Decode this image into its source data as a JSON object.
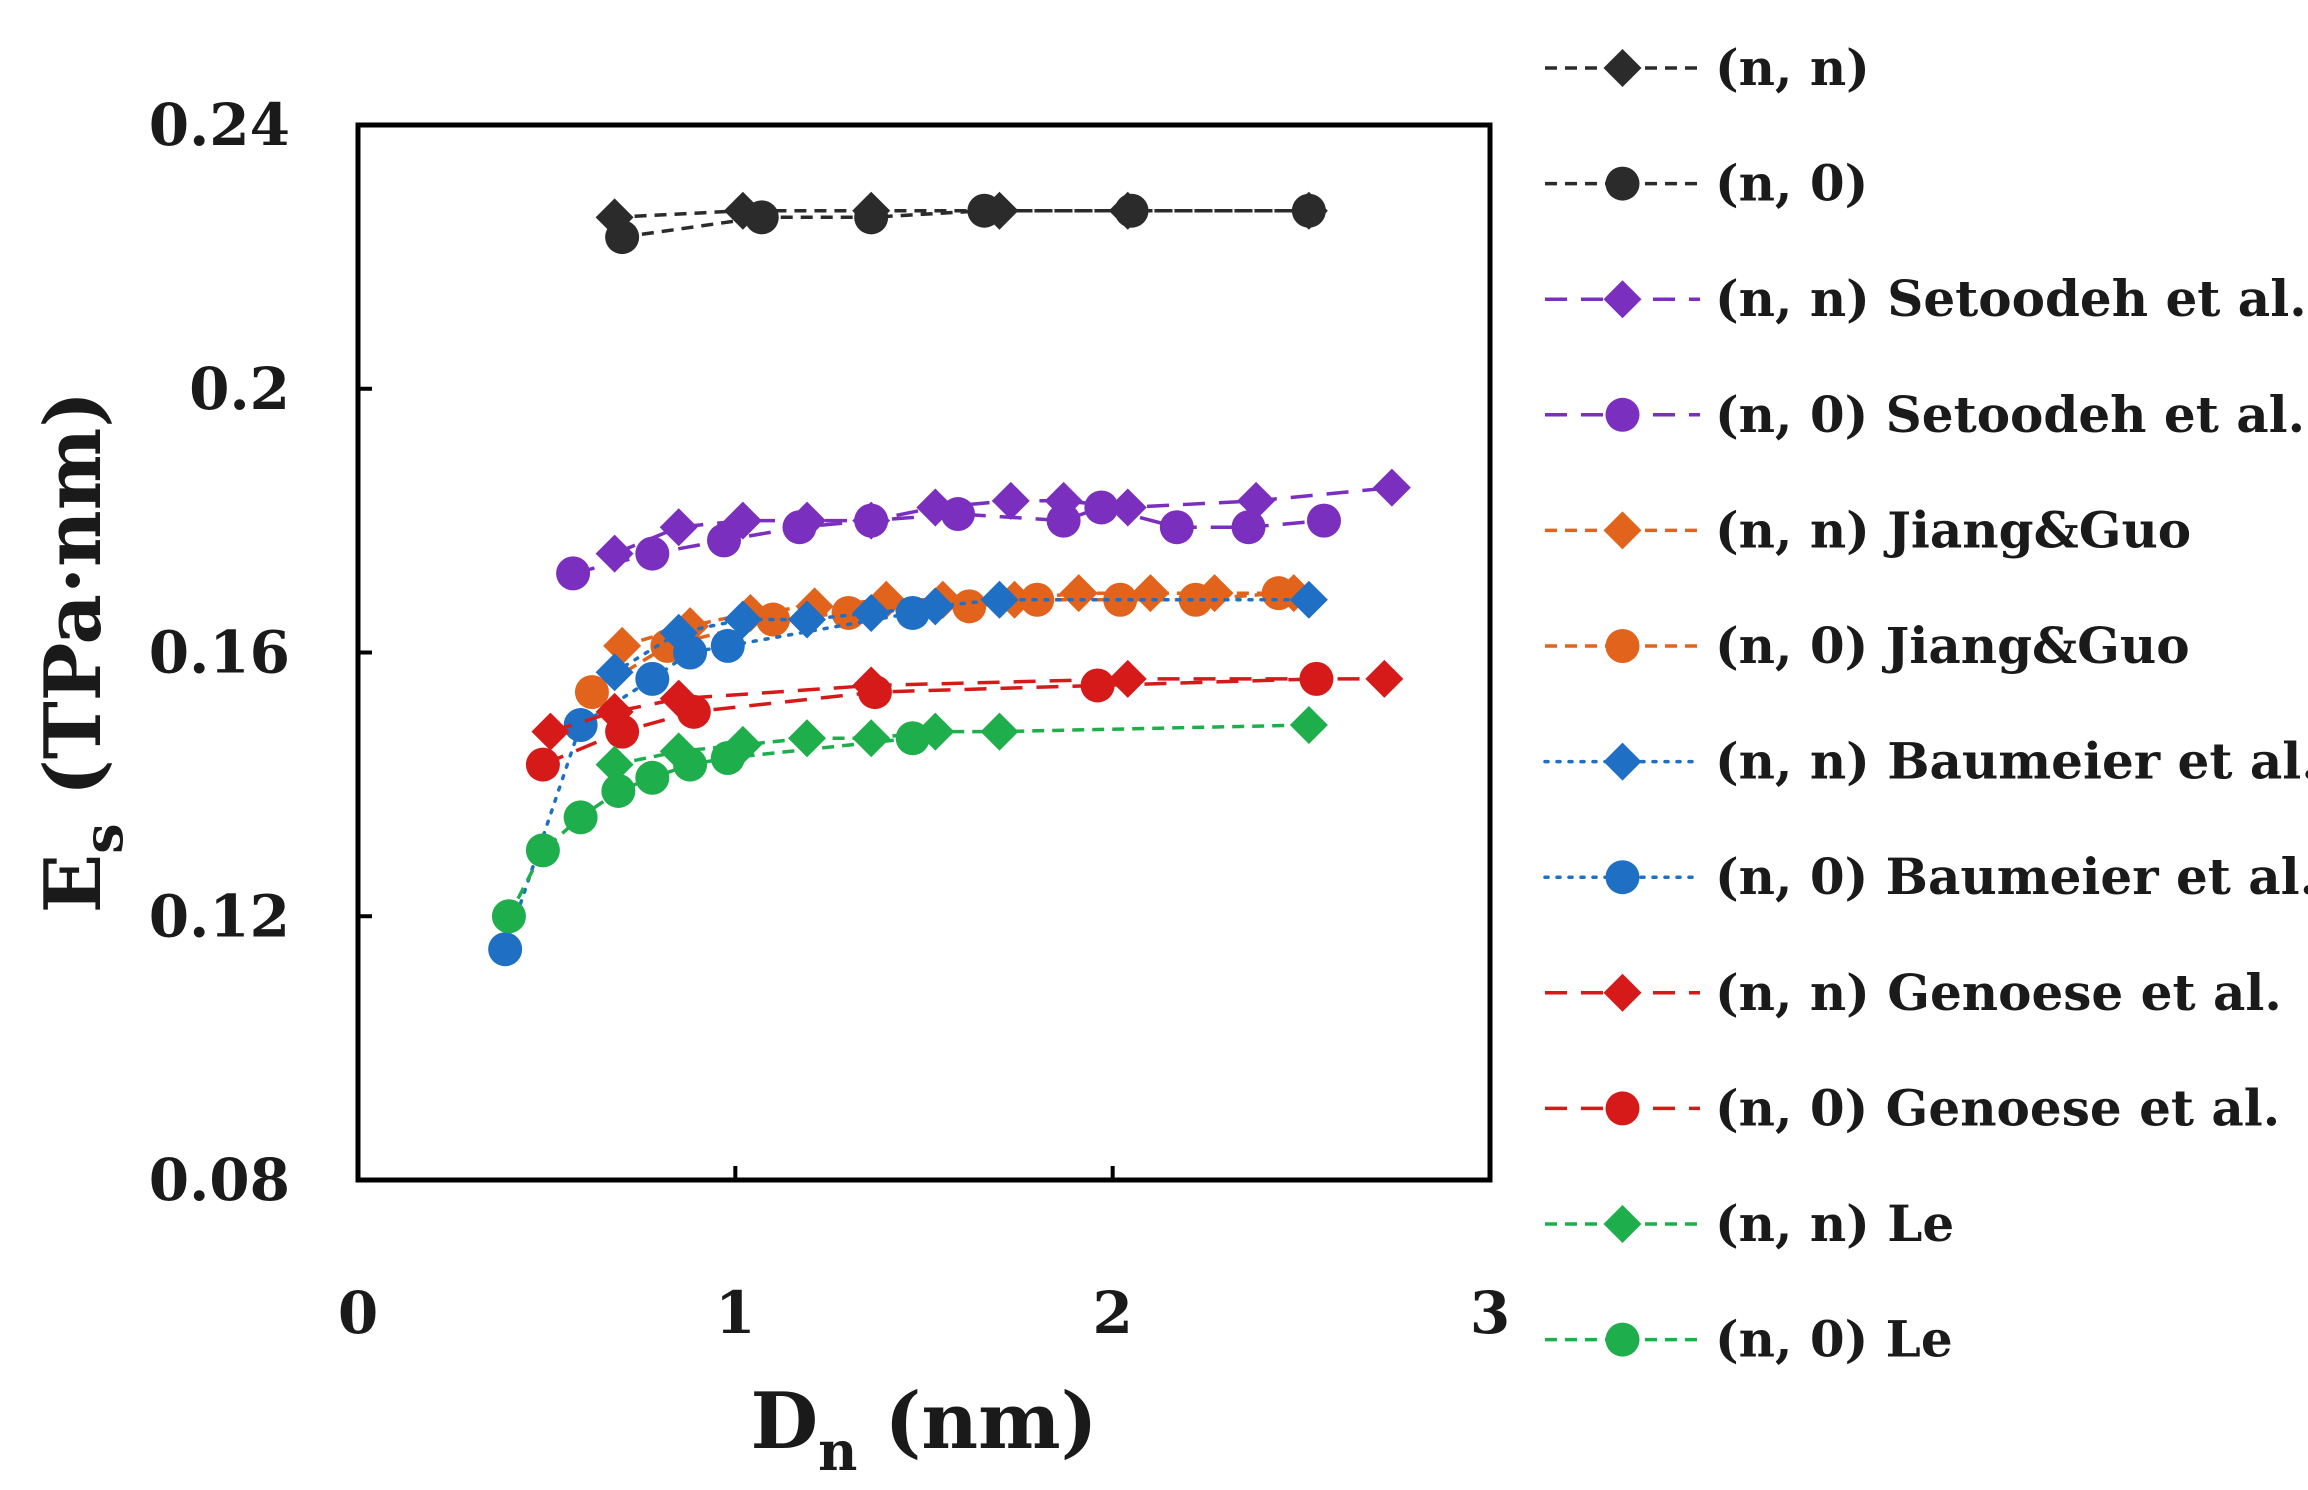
{
  "chart_data": {
    "type": "scatter",
    "xlabel": "D",
    "xlabel_sub": "n",
    "xlabel_unit": " (nm)",
    "ylabel": "E",
    "ylabel_sub": "s",
    "ylabel_unit": " (TPa·nm)",
    "xlim": [
      0,
      3
    ],
    "ylim": [
      0.08,
      0.24
    ],
    "xticks": [
      0,
      1,
      2,
      3
    ],
    "xtick_labels": [
      "0",
      "1",
      "2",
      "3"
    ],
    "yticks": [
      0.08,
      0.12,
      0.16,
      0.2,
      0.24
    ],
    "ytick_labels": [
      "0.08",
      "0.12",
      "0.16",
      "0.2",
      "0.24"
    ],
    "grid": false,
    "legend_position": "right, outside plot",
    "series": [
      {
        "name": "(n, n)",
        "color": "#2b2b2b",
        "marker": "diamond",
        "line": "dashed",
        "x": [
          0.68,
          1.02,
          1.36,
          1.7,
          2.04,
          2.52
        ],
        "y": [
          0.226,
          0.227,
          0.227,
          0.227,
          0.227,
          0.227
        ]
      },
      {
        "name": "(n, 0)",
        "color": "#2b2b2b",
        "marker": "circle",
        "line": "dashed",
        "x": [
          0.7,
          1.07,
          1.36,
          1.66,
          2.05,
          2.52
        ],
        "y": [
          0.223,
          0.226,
          0.226,
          0.227,
          0.227,
          0.227
        ]
      },
      {
        "name": "(n, n) Setoodeh et al.",
        "color": "#7b2fbe",
        "marker": "diamond",
        "line": "longdash",
        "x": [
          0.68,
          0.85,
          1.02,
          1.19,
          1.36,
          1.53,
          1.73,
          1.87,
          2.04,
          2.38,
          2.74
        ],
        "y": [
          0.175,
          0.179,
          0.18,
          0.18,
          0.18,
          0.182,
          0.183,
          0.183,
          0.182,
          0.183,
          0.185
        ]
      },
      {
        "name": "(n, 0) Setoodeh et al.",
        "color": "#7b2fbe",
        "marker": "circle",
        "line": "longdash",
        "x": [
          0.57,
          0.78,
          0.97,
          1.17,
          1.36,
          1.59,
          1.87,
          1.97,
          2.17,
          2.36,
          2.56
        ],
        "y": [
          0.172,
          0.175,
          0.177,
          0.179,
          0.18,
          0.181,
          0.18,
          0.182,
          0.179,
          0.179,
          0.18
        ]
      },
      {
        "name": "(n, n) Jiang&Guo",
        "color": "#e2631c",
        "marker": "diamond",
        "line": "dashed",
        "x": [
          0.7,
          0.88,
          1.04,
          1.21,
          1.4,
          1.55,
          1.74,
          1.91,
          2.1,
          2.27,
          2.48
        ],
        "y": [
          0.161,
          0.164,
          0.166,
          0.167,
          0.168,
          0.168,
          0.168,
          0.169,
          0.169,
          0.169,
          0.169
        ]
      },
      {
        "name": "(n, 0) Jiang&Guo",
        "color": "#e2631c",
        "marker": "circle",
        "line": "dashed",
        "x": [
          0.62,
          0.82,
          1.1,
          1.3,
          1.62,
          1.8,
          2.02,
          2.22,
          2.44
        ],
        "y": [
          0.154,
          0.161,
          0.165,
          0.166,
          0.167,
          0.168,
          0.168,
          0.168,
          0.169
        ]
      },
      {
        "name": "(n, n) Baumeier et al.",
        "color": "#1f6fc4",
        "marker": "diamond",
        "line": "dotted",
        "x": [
          0.68,
          0.85,
          1.02,
          1.19,
          1.36,
          1.53,
          1.7,
          2.52
        ],
        "y": [
          0.157,
          0.163,
          0.165,
          0.165,
          0.166,
          0.167,
          0.168,
          0.168
        ]
      },
      {
        "name": "(n, 0) Baumeier et al.",
        "color": "#1f6fc4",
        "marker": "circle",
        "line": "dotted",
        "x": [
          0.39,
          0.59,
          0.78,
          0.88,
          0.98,
          1.47
        ],
        "y": [
          0.115,
          0.149,
          0.156,
          0.16,
          0.161,
          0.166
        ]
      },
      {
        "name": "(n, n) Genoese et al.",
        "color": "#d61a1a",
        "marker": "diamond",
        "line": "longdash",
        "x": [
          0.51,
          0.68,
          0.85,
          1.36,
          2.04,
          2.72
        ],
        "y": [
          0.148,
          0.151,
          0.153,
          0.155,
          0.156,
          0.156
        ]
      },
      {
        "name": "(n, 0) Genoese et al.",
        "color": "#d61a1a",
        "marker": "circle",
        "line": "longdash",
        "x": [
          0.49,
          0.7,
          0.89,
          1.37,
          1.96,
          2.54
        ],
        "y": [
          0.143,
          0.148,
          0.151,
          0.154,
          0.155,
          0.156
        ]
      },
      {
        "name": "(n, n) Le",
        "color": "#1fae4c",
        "marker": "diamond",
        "line": "dashed",
        "x": [
          0.68,
          0.85,
          1.02,
          1.19,
          1.36,
          1.53,
          1.7,
          2.52
        ],
        "y": [
          0.143,
          0.145,
          0.146,
          0.147,
          0.147,
          0.148,
          0.148,
          0.149
        ]
      },
      {
        "name": "(n, 0) Le",
        "color": "#1fae4c",
        "marker": "circle",
        "line": "dashed",
        "x": [
          0.4,
          0.49,
          0.59,
          0.69,
          0.78,
          0.88,
          0.98,
          1.47
        ],
        "y": [
          0.12,
          0.13,
          0.135,
          0.139,
          0.141,
          0.143,
          0.144,
          0.147
        ]
      }
    ]
  }
}
